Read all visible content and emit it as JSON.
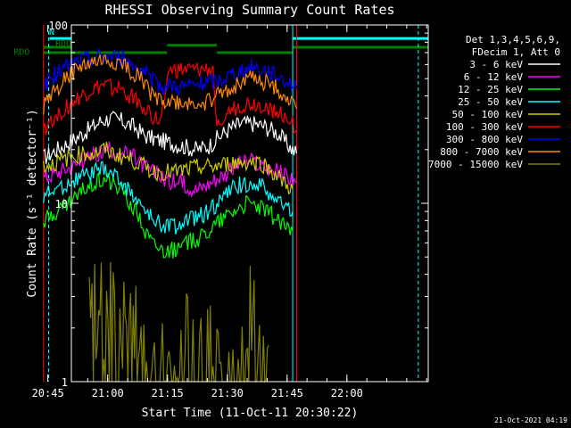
{
  "chart_data": {
    "type": "line",
    "title": "RHESSI Observing Summary Count Rates",
    "xlabel": "Start Time (11-Oct-11 20:30:22)",
    "ylabel": "Count Rate (s⁻¹ detector⁻¹)",
    "y_scale": "log",
    "ylim": [
      1,
      100
    ],
    "xlim_minutes": [
      20.5,
      110.0
    ],
    "x_ticks": [
      {
        "t": 14.6,
        "label": "20:45"
      },
      {
        "t": 29.6,
        "label": "21:00"
      },
      {
        "t": 44.6,
        "label": "21:15"
      },
      {
        "t": 59.6,
        "label": "21:30"
      },
      {
        "t": 74.6,
        "label": "21:45"
      },
      {
        "t": 89.6,
        "label": "22:00"
      }
    ],
    "y_ticks": [
      {
        "v": 1,
        "label": "1"
      },
      {
        "v": 10,
        "label": "10"
      },
      {
        "v": 100,
        "label": "100"
      }
    ],
    "legend_header": [
      "Det 1,3,4,5,6,9,",
      "FDecim 1, Att 0"
    ],
    "legend_placement": "right",
    "series": [
      {
        "name": "3 - 6 keV",
        "color": "#ffffff",
        "points": [
          [
            13.5,
            18
          ],
          [
            20,
            22
          ],
          [
            25,
            26
          ],
          [
            28,
            29
          ],
          [
            30,
            30
          ],
          [
            33,
            29
          ],
          [
            36,
            27
          ],
          [
            39,
            24
          ],
          [
            41,
            23
          ],
          [
            44.5,
            22
          ],
          [
            48,
            21
          ],
          [
            52,
            20
          ],
          [
            55,
            21
          ],
          [
            57,
            23
          ],
          [
            60,
            26
          ],
          [
            63,
            28
          ],
          [
            66,
            28
          ],
          [
            69,
            27
          ],
          [
            72,
            25
          ],
          [
            75,
            21
          ],
          [
            77,
            19
          ]
        ]
      },
      {
        "name": "6 - 12 keV",
        "color": "#ff00ff",
        "points": [
          [
            13.5,
            14
          ],
          [
            20,
            16
          ],
          [
            25,
            18
          ],
          [
            28,
            19
          ],
          [
            30,
            20
          ],
          [
            33,
            19
          ],
          [
            36,
            18
          ],
          [
            39,
            16
          ],
          [
            41,
            15
          ],
          [
            44.5,
            13.5
          ],
          [
            48,
            13
          ],
          [
            52,
            12
          ],
          [
            55,
            13
          ],
          [
            57,
            14
          ],
          [
            60,
            15
          ],
          [
            63,
            17
          ],
          [
            66,
            17
          ],
          [
            69,
            16
          ],
          [
            72,
            15
          ],
          [
            75,
            14
          ],
          [
            77,
            13
          ]
        ]
      },
      {
        "name": "12 - 25 keV",
        "color": "#00ff00",
        "points": [
          [
            13.5,
            8
          ],
          [
            17,
            9
          ],
          [
            20,
            10
          ],
          [
            23,
            11.5
          ],
          [
            26,
            13
          ],
          [
            29,
            14
          ],
          [
            31,
            13
          ],
          [
            34,
            11
          ],
          [
            37,
            9
          ],
          [
            39,
            7
          ],
          [
            41,
            6
          ],
          [
            44,
            5.5
          ],
          [
            47,
            5.5
          ],
          [
            50,
            6
          ],
          [
            53,
            6.5
          ],
          [
            56,
            7.5
          ],
          [
            59,
            8.5
          ],
          [
            62,
            9.5
          ],
          [
            65,
            10
          ],
          [
            68,
            9.5
          ],
          [
            71,
            8.5
          ],
          [
            74,
            7.5
          ],
          [
            76,
            7
          ]
        ]
      },
      {
        "name": "25 - 50 keV",
        "color": "#00ffff",
        "points": [
          [
            13.5,
            11
          ],
          [
            17,
            12
          ],
          [
            20,
            13
          ],
          [
            23,
            14
          ],
          [
            26,
            15
          ],
          [
            29,
            15.5
          ],
          [
            31,
            14.5
          ],
          [
            34,
            12.5
          ],
          [
            37,
            10.5
          ],
          [
            39,
            9
          ],
          [
            41,
            8
          ],
          [
            44,
            7.5
          ],
          [
            47,
            7.5
          ],
          [
            50,
            8
          ],
          [
            53,
            8.5
          ],
          [
            56,
            9.5
          ],
          [
            59,
            11
          ],
          [
            62,
            12.5
          ],
          [
            65,
            13
          ],
          [
            68,
            12.5
          ],
          [
            71,
            11
          ],
          [
            74,
            9.5
          ],
          [
            76,
            9
          ]
        ]
      },
      {
        "name": "50 - 100 keV",
        "color": "#cccc00",
        "points": [
          [
            13.5,
            16
          ],
          [
            17,
            17
          ],
          [
            20,
            18
          ],
          [
            23,
            19
          ],
          [
            26,
            19
          ],
          [
            29,
            20
          ],
          [
            31,
            19
          ],
          [
            34,
            18
          ],
          [
            37,
            17
          ],
          [
            39,
            16
          ],
          [
            41,
            15
          ],
          [
            44,
            15
          ],
          [
            47,
            15
          ],
          [
            50,
            15.5
          ],
          [
            53,
            16
          ],
          [
            56,
            16
          ],
          [
            59,
            16.5
          ],
          [
            62,
            17
          ],
          [
            65,
            17
          ],
          [
            68,
            17
          ],
          [
            71,
            15
          ],
          [
            74,
            13
          ],
          [
            76,
            12
          ]
        ]
      },
      {
        "name": "100 - 300 keV",
        "color": "#ff0000",
        "points": [
          [
            13.5,
            26
          ],
          [
            16,
            30
          ],
          [
            19,
            34
          ],
          [
            22,
            38
          ],
          [
            25,
            42
          ],
          [
            28,
            45
          ],
          [
            30,
            45
          ],
          [
            33,
            43
          ],
          [
            36,
            39
          ],
          [
            39,
            35
          ],
          [
            41,
            30
          ],
          [
            43,
            28
          ],
          [
            44.5,
            55
          ],
          [
            48,
            55
          ],
          [
            52,
            55
          ],
          [
            56,
            56
          ],
          [
            57,
            30
          ],
          [
            60,
            32
          ],
          [
            63,
            35
          ],
          [
            66,
            36
          ],
          [
            69,
            35
          ],
          [
            72,
            33
          ],
          [
            75,
            30
          ],
          [
            77,
            26
          ]
        ]
      },
      {
        "name": "300 - 800 keV",
        "color": "#0000ff",
        "points": [
          [
            13.5,
            45
          ],
          [
            16,
            52
          ],
          [
            19,
            58
          ],
          [
            22,
            62
          ],
          [
            25,
            65
          ],
          [
            28,
            67
          ],
          [
            30,
            67
          ],
          [
            33,
            65
          ],
          [
            36,
            60
          ],
          [
            39,
            54
          ],
          [
            41,
            48
          ],
          [
            43,
            45
          ],
          [
            44.5,
            46
          ],
          [
            48,
            45
          ],
          [
            52,
            46
          ],
          [
            56,
            48
          ],
          [
            57,
            48
          ],
          [
            60,
            52
          ],
          [
            63,
            56
          ],
          [
            66,
            58
          ],
          [
            69,
            56
          ],
          [
            72,
            52
          ],
          [
            75,
            48
          ],
          [
            77,
            44
          ]
        ]
      },
      {
        "name": "800 - 7000 keV",
        "color": "#ff8800",
        "points": [
          [
            13.5,
            35
          ],
          [
            16,
            42
          ],
          [
            19,
            50
          ],
          [
            22,
            56
          ],
          [
            25,
            60
          ],
          [
            28,
            62
          ],
          [
            30,
            62
          ],
          [
            33,
            60
          ],
          [
            36,
            54
          ],
          [
            39,
            47
          ],
          [
            41,
            40
          ],
          [
            43,
            38
          ],
          [
            44.5,
            37
          ],
          [
            48,
            36
          ],
          [
            52,
            36
          ],
          [
            56,
            38
          ],
          [
            57,
            40
          ],
          [
            60,
            44
          ],
          [
            63,
            48
          ],
          [
            66,
            50
          ],
          [
            69,
            48
          ],
          [
            72,
            44
          ],
          [
            75,
            38
          ],
          [
            77,
            34
          ]
        ]
      },
      {
        "name": "7000 - 15000 keV",
        "color": "#808000",
        "points": [
          [
            25,
            2.5
          ],
          [
            27,
            3
          ],
          [
            29,
            3
          ],
          [
            31,
            3
          ],
          [
            33,
            2.4
          ],
          [
            35,
            2
          ],
          [
            37,
            1.8
          ],
          [
            39,
            1.5
          ],
          [
            41,
            1.2
          ],
          [
            59,
            2
          ],
          [
            62,
            2
          ],
          [
            64,
            2
          ],
          [
            66,
            2
          ],
          [
            68,
            1.8
          ],
          [
            70,
            1.6
          ]
        ]
      }
    ],
    "attenuator_state": {
      "color": "#008000",
      "segments": [
        [
          20.5,
          13.5,
          75
        ],
        [
          13.5,
          44.5,
          70
        ],
        [
          44.5,
          57,
          77
        ],
        [
          57,
          76,
          70
        ],
        [
          76,
          110,
          75
        ]
      ]
    },
    "saa_state": {
      "color": "#00ffff",
      "segments": [
        [
          20.5,
          15,
          84
        ],
        [
          76,
          110,
          84
        ]
      ]
    },
    "markers": [
      {
        "t": 13.5,
        "color": "#ff0000"
      },
      {
        "t": 14.8,
        "color": "#00ffff",
        "dashed": true
      },
      {
        "t": 76,
        "color": "#00ffff"
      },
      {
        "t": 77,
        "color": "#ff0000"
      },
      {
        "t": 107.5,
        "color": "#00ffff",
        "dashed": true
      }
    ],
    "annotations": [
      {
        "text": "RDO",
        "t": 6,
        "v": 68,
        "color": "#008000"
      },
      {
        "text": "RDO",
        "t": 16.5,
        "v": 76,
        "color": "#008000"
      },
      {
        "text": "N",
        "t": 14.9,
        "v": 88,
        "color": "#00ffff"
      }
    ],
    "footer_stamp": "21-Oct-2021 04:19"
  }
}
